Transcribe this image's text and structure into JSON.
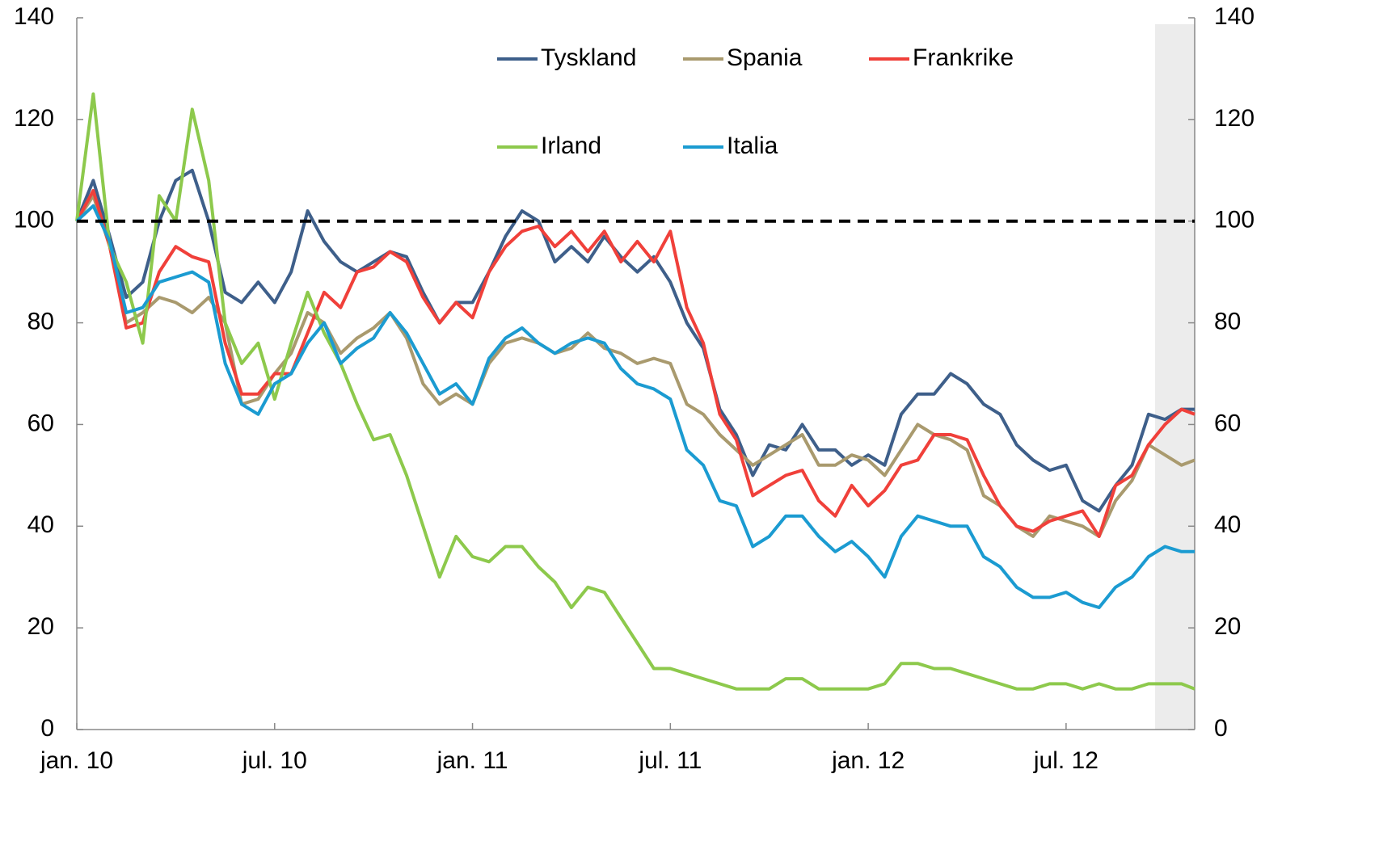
{
  "chart_data": {
    "type": "line",
    "x": [
      0,
      0.5,
      1,
      1.5,
      2,
      2.5,
      3,
      3.5,
      4,
      4.5,
      5,
      5.5,
      6,
      6.5,
      7,
      7.5,
      8,
      8.5,
      9,
      9.5,
      10,
      10.5,
      11,
      11.5,
      12,
      12.5,
      13,
      13.5,
      14,
      14.5,
      15,
      15.5,
      16,
      16.5,
      17,
      17.5,
      18,
      18.5,
      19,
      19.5,
      20,
      20.5,
      21,
      21.5,
      22,
      22.5,
      23,
      23.5,
      24,
      24.5,
      25,
      25.5,
      26,
      26.5,
      27,
      27.5,
      28,
      28.5,
      29,
      29.5,
      30,
      30.5,
      31,
      31.5,
      32,
      32.5,
      33,
      33.5,
      33.9
    ],
    "series": [
      {
        "name": "Tyskland",
        "color": "#3e5f8a",
        "values": [
          100,
          108,
          97,
          85,
          88,
          100,
          108,
          110,
          100,
          86,
          84,
          88,
          84,
          90,
          102,
          96,
          92,
          90,
          92,
          94,
          93,
          86,
          80,
          84,
          84,
          90,
          97,
          102,
          100,
          92,
          95,
          92,
          97,
          93,
          90,
          93,
          88,
          80,
          75,
          63,
          58,
          50,
          56,
          55,
          60,
          55,
          55,
          52,
          54,
          52,
          62,
          66,
          66,
          70,
          68,
          64,
          62,
          56,
          53,
          51,
          52,
          45,
          43,
          48,
          52,
          62,
          61,
          63,
          63
        ]
      },
      {
        "name": "Spania",
        "color": "#a99a6e",
        "values": [
          100,
          105,
          95,
          80,
          82,
          85,
          84,
          82,
          85,
          80,
          64,
          65,
          70,
          74,
          82,
          80,
          74,
          77,
          79,
          82,
          77,
          68,
          64,
          66,
          64,
          72,
          76,
          77,
          76,
          74,
          75,
          78,
          75,
          74,
          72,
          73,
          72,
          64,
          62,
          58,
          55,
          52,
          54,
          56,
          58,
          52,
          52,
          54,
          53,
          50,
          55,
          60,
          58,
          57,
          55,
          46,
          44,
          40,
          38,
          42,
          41,
          40,
          38,
          45,
          49,
          56,
          54,
          52,
          53
        ]
      },
      {
        "name": "Frankrike",
        "color": "#f0403a",
        "values": [
          100,
          106,
          95,
          79,
          80,
          90,
          95,
          93,
          92,
          76,
          66,
          66,
          70,
          70,
          78,
          86,
          83,
          90,
          91,
          94,
          92,
          85,
          80,
          84,
          81,
          90,
          95,
          98,
          99,
          95,
          98,
          94,
          98,
          92,
          96,
          92,
          98,
          83,
          76,
          62,
          57,
          46,
          48,
          50,
          51,
          45,
          42,
          48,
          44,
          47,
          52,
          53,
          58,
          58,
          57,
          50,
          44,
          40,
          39,
          41,
          42,
          43,
          38,
          48,
          50,
          56,
          60,
          63,
          62
        ]
      },
      {
        "name": "Irland",
        "color": "#8dc94c",
        "values": [
          100,
          125,
          95,
          88,
          76,
          105,
          100,
          122,
          108,
          80,
          72,
          76,
          65,
          76,
          86,
          78,
          72,
          64,
          57,
          58,
          50,
          40,
          30,
          38,
          34,
          33,
          36,
          36,
          32,
          29,
          24,
          28,
          27,
          22,
          17,
          12,
          12,
          11,
          10,
          9,
          8,
          8,
          8,
          10,
          10,
          8,
          8,
          8,
          8,
          9,
          13,
          13,
          12,
          12,
          11,
          10,
          9,
          8,
          8,
          9,
          9,
          8,
          9,
          8,
          8,
          9,
          9,
          9,
          8
        ]
      },
      {
        "name": "Italia",
        "color": "#1b9bd1",
        "values": [
          100,
          103,
          96,
          82,
          83,
          88,
          89,
          90,
          88,
          72,
          64,
          62,
          68,
          70,
          76,
          80,
          72,
          75,
          77,
          82,
          78,
          72,
          66,
          68,
          64,
          73,
          77,
          79,
          76,
          74,
          76,
          77,
          76,
          71,
          68,
          67,
          65,
          55,
          52,
          45,
          44,
          36,
          38,
          42,
          42,
          38,
          35,
          37,
          34,
          30,
          38,
          42,
          41,
          40,
          40,
          34,
          32,
          28,
          26,
          26,
          27,
          25,
          24,
          28,
          30,
          34,
          36,
          35,
          35
        ]
      }
    ],
    "xlim": [
      0,
      33.9
    ],
    "xticks": [
      {
        "value": 0,
        "label": "jan. 10"
      },
      {
        "value": 6,
        "label": "jul. 10"
      },
      {
        "value": 12,
        "label": "jan. 11"
      },
      {
        "value": 18,
        "label": "jul. 11"
      },
      {
        "value": 24,
        "label": "jan. 12"
      },
      {
        "value": 30,
        "label": "jul. 12"
      }
    ],
    "ylim": [
      0,
      140
    ],
    "yticks": [
      0,
      20,
      40,
      60,
      80,
      100,
      120,
      140
    ],
    "y2lim": [
      0,
      140
    ],
    "y2ticks": [
      0,
      20,
      40,
      60,
      80,
      100,
      120,
      140
    ],
    "hline": 100,
    "shade": [
      32.7,
      33.9
    ]
  }
}
